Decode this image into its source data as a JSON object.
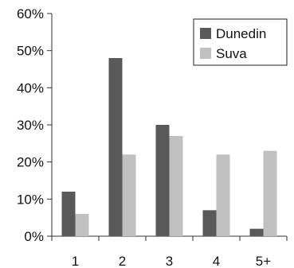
{
  "chart_data": {
    "type": "bar",
    "categories": [
      "1",
      "2",
      "3",
      "4",
      "5+"
    ],
    "series": [
      {
        "name": "Dunedin",
        "values": [
          12,
          48,
          30,
          7,
          2
        ],
        "color": "#595959"
      },
      {
        "name": "Suva",
        "values": [
          6,
          22,
          27,
          22,
          23
        ],
        "color": "#c0c0c0"
      }
    ],
    "y_ticks": [
      0,
      10,
      20,
      30,
      40,
      50,
      60
    ],
    "y_tick_labels": [
      "0%",
      "10%",
      "20%",
      "30%",
      "40%",
      "50%",
      "60%"
    ],
    "ylim": [
      0,
      60
    ],
    "grid": false,
    "legend_position": "top-right"
  }
}
